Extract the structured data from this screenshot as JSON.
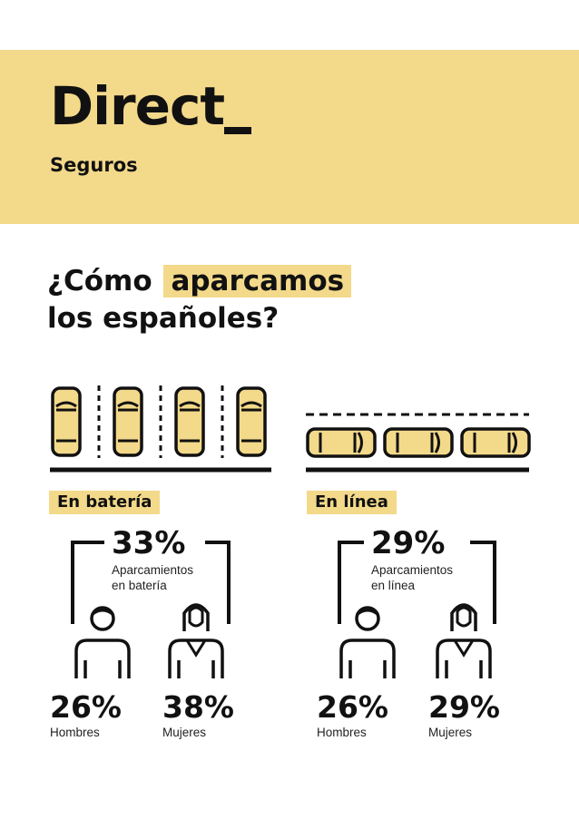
{
  "brand": {
    "logo_word": "Direct",
    "logo_sub": "Seguros",
    "banner_color": "#f3d98a"
  },
  "headline": {
    "part1": "¿Cómo",
    "highlight": "aparcamos",
    "line2": "los españoles?"
  },
  "sections": {
    "bateria": {
      "label": "En batería",
      "total_pct": "33%",
      "total_desc_line1": "Aparcamientos",
      "total_desc_line2": "en batería",
      "men_pct": "26%",
      "men_label": "Hombres",
      "women_pct": "38%",
      "women_label": "Mujeres"
    },
    "linea": {
      "label": "En línea",
      "total_pct": "29%",
      "total_desc_line1": "Aparcamientos",
      "total_desc_line2": "en línea",
      "men_pct": "26%",
      "men_label": "Hombres",
      "women_pct": "29%",
      "women_label": "Mujeres"
    }
  },
  "icons": {
    "car": "car-icon",
    "man": "man-icon",
    "woman": "woman-icon"
  }
}
